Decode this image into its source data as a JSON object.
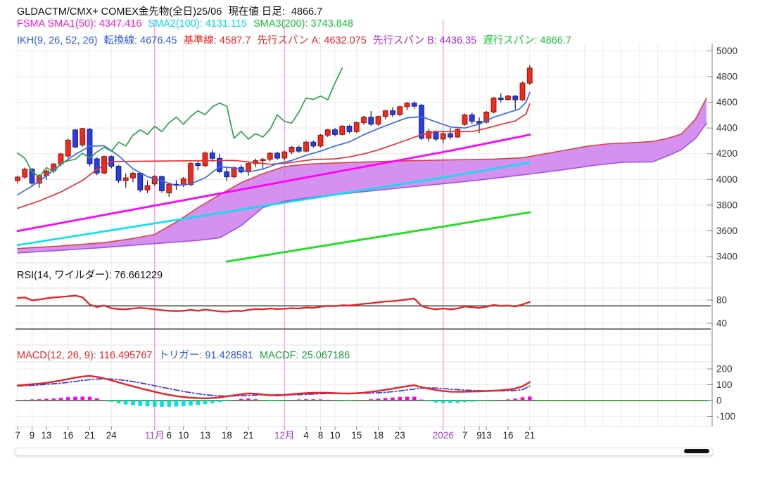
{
  "header": {
    "title": "GLDACTM/CMX+ COMEX金先物(全日)25/06",
    "current_label": "現在値 日足:",
    "current_value": "4866.7",
    "fsma_seg": "FSMA SMA1(50): 4347.416",
    "sma2_seg": "SMA2(100): 4131.115",
    "sma3_seg": "SMA3(200): 3743.848",
    "ikh_seg": "IKH(9, 26, 52, 26)",
    "tenkan_seg": "転換線: 4676.45",
    "kijun_seg": "基準線: 4587.7",
    "span_a_seg": "先行スパン A: 4632.075",
    "span_b_seg": "先行スパン B: 4436.35",
    "chikou_seg": "遅行スパン: 4866.7"
  },
  "rsi_label": {
    "text": "RSI(14, ワイルダー): 76.661229"
  },
  "macd_label": {
    "macd_seg": "MACD(12, 26, 9): 116.495767",
    "trigger_seg": "トリガー: 91.428581",
    "macdf_seg": "MACDF: 25.067186"
  },
  "colors": {
    "up": "#ef2b1e",
    "up_border": "#9c1208",
    "down": "#2b3de0",
    "down_border": "#101f8a",
    "wick": "#1a1a1a",
    "tenkan": "#3a6ae8",
    "kijun": "#e83030",
    "span_a": "#e04040",
    "span_b": "#a84fe0",
    "cloud": "#c976ec",
    "chikou": "#2fa14f",
    "sma1": "#ff00ff",
    "sma2": "#00e5ee",
    "sma3": "#1adf1a",
    "rsi": "#e82222",
    "rsi_ref": "#5a5a5a",
    "macd": "#e82222",
    "trigger": "#3838e0",
    "zero": "#0a8a0a",
    "hist_pos": "#ff00e8",
    "hist_neg": "#00e0ea",
    "month_line": "#fc9ce8",
    "month_label": "#a438d8",
    "grid": "#ececf0",
    "panel_line": "#e2e2e6",
    "axis": "#999999",
    "tick_label": "#333333",
    "x_label": "#222222",
    "legend": {
      "title": "#111111",
      "magenta": "#ff1ad0",
      "cyan": "#00d9e8",
      "green": "#12c23a",
      "blue": "#2b5ae8",
      "red": "#e82525",
      "purple": "#a82be0",
      "black": "#111111",
      "macd_green": "#1d9e3a"
    }
  },
  "chart_data": {
    "type": "candlestick",
    "title": "GLDACTM/CMX+ COMEX金先物(全日)25/06 現在値 日足: 4866.7",
    "x_ticks": [
      [
        0,
        "7"
      ],
      [
        2,
        "9"
      ],
      [
        4,
        "13"
      ],
      [
        7,
        "16"
      ],
      [
        10,
        "21"
      ],
      [
        13,
        "24"
      ],
      [
        19,
        "11月"
      ],
      [
        21,
        "6"
      ],
      [
        23,
        "10"
      ],
      [
        26,
        "13"
      ],
      [
        29,
        "18"
      ],
      [
        32,
        "21"
      ],
      [
        37,
        "12月"
      ],
      [
        40,
        "4"
      ],
      [
        42,
        "8"
      ],
      [
        44,
        "10"
      ],
      [
        47,
        "15"
      ],
      [
        50,
        "18"
      ],
      [
        53,
        "23"
      ],
      [
        59,
        "2026"
      ],
      [
        62,
        "7"
      ],
      [
        64,
        "9"
      ],
      [
        65,
        "13"
      ],
      [
        68,
        "16"
      ],
      [
        71,
        "21"
      ]
    ],
    "month_line_indices": [
      19,
      37,
      59
    ],
    "price_panel": {
      "ylim": [
        3330,
        5060
      ],
      "y_ticks": [
        5000,
        4800,
        4600,
        4400,
        4200,
        4000,
        3800,
        3600,
        3400
      ],
      "candles_ohlc": [
        [
          3990,
          4028,
          3968,
          4018
        ],
        [
          4018,
          4092,
          4005,
          4080
        ],
        [
          4080,
          4090,
          3950,
          3970
        ],
        [
          3970,
          4040,
          3936,
          4030
        ],
        [
          4030,
          4075,
          3996,
          4066
        ],
        [
          4066,
          4128,
          4048,
          4120
        ],
        [
          4120,
          4208,
          4102,
          4198
        ],
        [
          4182,
          4318,
          4165,
          4306
        ],
        [
          4385,
          4392,
          4246,
          4252
        ],
        [
          4268,
          4402,
          4255,
          4396
        ],
        [
          4390,
          4400,
          4102,
          4122
        ],
        [
          4160,
          4172,
          4032,
          4050
        ],
        [
          4050,
          4186,
          4040,
          4178
        ],
        [
          4178,
          4186,
          4086,
          4102
        ],
        [
          4102,
          4112,
          3972,
          3992
        ],
        [
          3992,
          4046,
          3936,
          4012
        ],
        [
          4012,
          4060,
          3978,
          4048
        ],
        [
          4048,
          4052,
          3900,
          3918
        ],
        [
          3918,
          3990,
          3894,
          3952
        ],
        [
          3965,
          4032,
          3950,
          4022
        ],
        [
          4022,
          4028,
          3896,
          3912
        ],
        [
          3895,
          3972,
          3866,
          3962
        ],
        [
          3962,
          3994,
          3918,
          3956
        ],
        [
          3956,
          4018,
          3940,
          4006
        ],
        [
          3960,
          4136,
          3946,
          4124
        ],
        [
          4124,
          4152,
          4072,
          4108
        ],
        [
          4108,
          4218,
          4094,
          4206
        ],
        [
          4206,
          4232,
          4138,
          4164
        ],
        [
          4164,
          4200,
          4048,
          4060
        ],
        [
          4060,
          4092,
          3986,
          4020
        ],
        [
          4020,
          4102,
          4008,
          4092
        ],
        [
          4092,
          4114,
          4046,
          4058
        ],
        [
          4058,
          4138,
          4030,
          4124
        ],
        [
          4124,
          4162,
          4096,
          4146
        ],
        [
          4146,
          4168,
          4078,
          4156
        ],
        [
          4156,
          4212,
          4140,
          4204
        ],
        [
          4204,
          4216,
          4152,
          4166
        ],
        [
          4166,
          4224,
          4148,
          4214
        ],
        [
          4214,
          4260,
          4196,
          4250
        ],
        [
          4250,
          4264,
          4206,
          4220
        ],
        [
          4220,
          4300,
          4212,
          4290
        ],
        [
          4290,
          4304,
          4246,
          4260
        ],
        [
          4260,
          4352,
          4250,
          4344
        ],
        [
          4344,
          4394,
          4330,
          4386
        ],
        [
          4386,
          4400,
          4336,
          4350
        ],
        [
          4350,
          4422,
          4342,
          4414
        ],
        [
          4414,
          4426,
          4358,
          4372
        ],
        [
          4372,
          4450,
          4362,
          4442
        ],
        [
          4442,
          4494,
          4426,
          4484
        ],
        [
          4484,
          4532,
          4416,
          4430
        ],
        [
          4430,
          4496,
          4418,
          4490
        ],
        [
          4490,
          4542,
          4468,
          4534
        ],
        [
          4534,
          4562,
          4486,
          4504
        ],
        [
          4504,
          4574,
          4494,
          4566
        ],
        [
          4566,
          4602,
          4538,
          4594
        ],
        [
          4594,
          4608,
          4550,
          4570
        ],
        [
          4578,
          4586,
          4306,
          4320
        ],
        [
          4320,
          4392,
          4294,
          4374
        ],
        [
          4374,
          4382,
          4296,
          4314
        ],
        [
          4314,
          4376,
          4282,
          4356
        ],
        [
          4356,
          4402,
          4312,
          4330
        ],
        [
          4330,
          4398,
          4322,
          4390
        ],
        [
          4428,
          4512,
          4418,
          4502
        ],
        [
          4502,
          4518,
          4430,
          4452
        ],
        [
          4452,
          4482,
          4360,
          4438
        ],
        [
          4445,
          4532,
          4436,
          4524
        ],
        [
          4524,
          4642,
          4514,
          4634
        ],
        [
          4634,
          4670,
          4600,
          4622
        ],
        [
          4622,
          4658,
          4612,
          4648
        ],
        [
          4648,
          4656,
          4545,
          4620
        ],
        [
          4620,
          4762,
          4612,
          4750
        ],
        [
          4750,
          4890,
          4736,
          4866.7
        ]
      ],
      "tenkan": [
        [
          0,
          3880
        ],
        [
          2,
          3948
        ],
        [
          4,
          4028
        ],
        [
          6,
          4118
        ],
        [
          8,
          4195
        ],
        [
          10,
          4258
        ],
        [
          12,
          4262
        ],
        [
          14,
          4185
        ],
        [
          16,
          4082
        ],
        [
          18,
          4022
        ],
        [
          20,
          3988
        ],
        [
          22,
          3952
        ],
        [
          24,
          3965
        ],
        [
          26,
          4012
        ],
        [
          28,
          4098
        ],
        [
          30,
          4090
        ],
        [
          32,
          4058
        ],
        [
          34,
          4080
        ],
        [
          36,
          4122
        ],
        [
          38,
          4148
        ],
        [
          40,
          4188
        ],
        [
          42,
          4220
        ],
        [
          44,
          4260
        ],
        [
          46,
          4292
        ],
        [
          48,
          4348
        ],
        [
          50,
          4395
        ],
        [
          52,
          4438
        ],
        [
          54,
          4480
        ],
        [
          56,
          4488
        ],
        [
          58,
          4448
        ],
        [
          60,
          4408
        ],
        [
          62,
          4400
        ],
        [
          64,
          4430
        ],
        [
          66,
          4484
        ],
        [
          68,
          4520
        ],
        [
          69.5,
          4545
        ],
        [
          70.5,
          4600
        ],
        [
          71,
          4676.45
        ]
      ],
      "kijun": [
        [
          0,
          3775
        ],
        [
          3,
          3832
        ],
        [
          6,
          3902
        ],
        [
          9,
          3992
        ],
        [
          11,
          4078
        ],
        [
          13,
          4138
        ],
        [
          18,
          4142
        ],
        [
          24,
          4145
        ],
        [
          30,
          4148
        ],
        [
          33,
          4130
        ],
        [
          35,
          4118
        ],
        [
          37,
          4125
        ],
        [
          39,
          4140
        ],
        [
          41,
          4155
        ],
        [
          44,
          4160
        ],
        [
          46,
          4175
        ],
        [
          48,
          4198
        ],
        [
          50,
          4230
        ],
        [
          52,
          4268
        ],
        [
          54,
          4308
        ],
        [
          56,
          4348
        ],
        [
          58,
          4372
        ],
        [
          63,
          4372
        ],
        [
          65,
          4398
        ],
        [
          67,
          4428
        ],
        [
          69,
          4455
        ],
        [
          70.5,
          4510
        ],
        [
          71,
          4587.7
        ]
      ],
      "senkou_a": [
        [
          0,
          3462
        ],
        [
          6,
          3482
        ],
        [
          12,
          3508
        ],
        [
          16,
          3540
        ],
        [
          19,
          3572
        ],
        [
          22,
          3668
        ],
        [
          25,
          3780
        ],
        [
          28,
          3880
        ],
        [
          31,
          3975
        ],
        [
          34,
          4045
        ],
        [
          37,
          4100
        ],
        [
          40,
          4118
        ],
        [
          44,
          4128
        ],
        [
          48,
          4135
        ],
        [
          54,
          4145
        ],
        [
          60,
          4152
        ],
        [
          66,
          4158
        ],
        [
          70,
          4168
        ],
        [
          73,
          4198
        ],
        [
          76,
          4228
        ],
        [
          79,
          4258
        ],
        [
          82,
          4278
        ],
        [
          85,
          4285
        ],
        [
          88,
          4295
        ],
        [
          90,
          4318
        ],
        [
          92,
          4352
        ],
        [
          94,
          4470
        ],
        [
          95.5,
          4632.075
        ]
      ],
      "senkou_b": [
        [
          0,
          3428
        ],
        [
          6,
          3448
        ],
        [
          12,
          3470
        ],
        [
          16,
          3488
        ],
        [
          19,
          3500
        ],
        [
          22,
          3512
        ],
        [
          25,
          3525
        ],
        [
          28,
          3545
        ],
        [
          31,
          3640
        ],
        [
          34,
          3780
        ],
        [
          37,
          3830
        ],
        [
          40,
          3855
        ],
        [
          44,
          3880
        ],
        [
          48,
          3905
        ],
        [
          52,
          3928
        ],
        [
          56,
          3950
        ],
        [
          60,
          3972
        ],
        [
          64,
          3995
        ],
        [
          68,
          4022
        ],
        [
          72,
          4048
        ],
        [
          76,
          4078
        ],
        [
          80,
          4110
        ],
        [
          84,
          4134
        ],
        [
          88,
          4136
        ],
        [
          90,
          4180
        ],
        [
          92,
          4230
        ],
        [
          94,
          4320
        ],
        [
          95.5,
          4436.35
        ]
      ],
      "sma1": [
        [
          0,
          3598
        ],
        [
          12,
          3723
        ],
        [
          24,
          3848
        ],
        [
          36,
          3973
        ],
        [
          48,
          4098
        ],
        [
          60,
          4223
        ],
        [
          71,
          4347.416
        ]
      ],
      "sma2": [
        [
          0,
          3488
        ],
        [
          12,
          3595
        ],
        [
          24,
          3702
        ],
        [
          36,
          3810
        ],
        [
          48,
          3917
        ],
        [
          60,
          4024
        ],
        [
          71,
          4131.115
        ]
      ],
      "sma3": [
        [
          29,
          3360
        ],
        [
          40,
          3462
        ],
        [
          50,
          3552
        ],
        [
          60,
          3642
        ],
        [
          66,
          3698
        ],
        [
          71,
          3743.848
        ]
      ],
      "chikou_shift": 26
    },
    "rsi_panel": {
      "ylim": [
        0,
        100
      ],
      "y_ticks": [
        80,
        40
      ],
      "ref_lines": [
        70,
        30
      ],
      "values": [
        83.5,
        84.5,
        79.5,
        81,
        83,
        84.5,
        85.5,
        86.5,
        87.5,
        85,
        72,
        68,
        70.5,
        66,
        64.5,
        64,
        65.5,
        66.5,
        65.5,
        64,
        62.5,
        61.5,
        61,
        61.5,
        63,
        61.5,
        63.5,
        62,
        60.5,
        60,
        61.5,
        61,
        63,
        64.5,
        64,
        65.5,
        64.5,
        65,
        66,
        65.5,
        67,
        66.5,
        68.5,
        70,
        69.5,
        71,
        70.5,
        72,
        73.5,
        74.5,
        76,
        77.5,
        78,
        79.5,
        81,
        82.5,
        70,
        66,
        64,
        65.5,
        64,
        65.5,
        69,
        67.5,
        66.5,
        68.5,
        71.5,
        70,
        70.5,
        69,
        72.5,
        76.661229
      ]
    },
    "macd_panel": {
      "y_ticks": [
        200,
        100,
        0,
        -100
      ],
      "macd": [
        95,
        99,
        103,
        107,
        112,
        119,
        127,
        136,
        145,
        152,
        156,
        150,
        140,
        128,
        115,
        102,
        90,
        78,
        66,
        55,
        45,
        36,
        28,
        22,
        18,
        15,
        14,
        16,
        20,
        26,
        33,
        40,
        45,
        43,
        38,
        34,
        32,
        35,
        40,
        44,
        47,
        49,
        50,
        49,
        47,
        45,
        44,
        46,
        50,
        55,
        61,
        68,
        75,
        83,
        91,
        97,
        84,
        75,
        66,
        60,
        56,
        55,
        56,
        57,
        58,
        60,
        62,
        65,
        69,
        76,
        90,
        116.495767
      ],
      "trigger": [
        92,
        94,
        96,
        99,
        102,
        106,
        110,
        115,
        121,
        127,
        132,
        136,
        137,
        136,
        132,
        127,
        120,
        112,
        103,
        94,
        84,
        75,
        66,
        58,
        50,
        43,
        37,
        33,
        30,
        29,
        29,
        30,
        32,
        35,
        37,
        37,
        36,
        35,
        36,
        37,
        39,
        41,
        43,
        44,
        45,
        46,
        46,
        45,
        46,
        47,
        49,
        52,
        56,
        61,
        67,
        73,
        78,
        80,
        79,
        76,
        72,
        69,
        66,
        64,
        62,
        61,
        61,
        61,
        62,
        64,
        69,
        91.428581
      ]
    }
  },
  "scrollbar": {}
}
